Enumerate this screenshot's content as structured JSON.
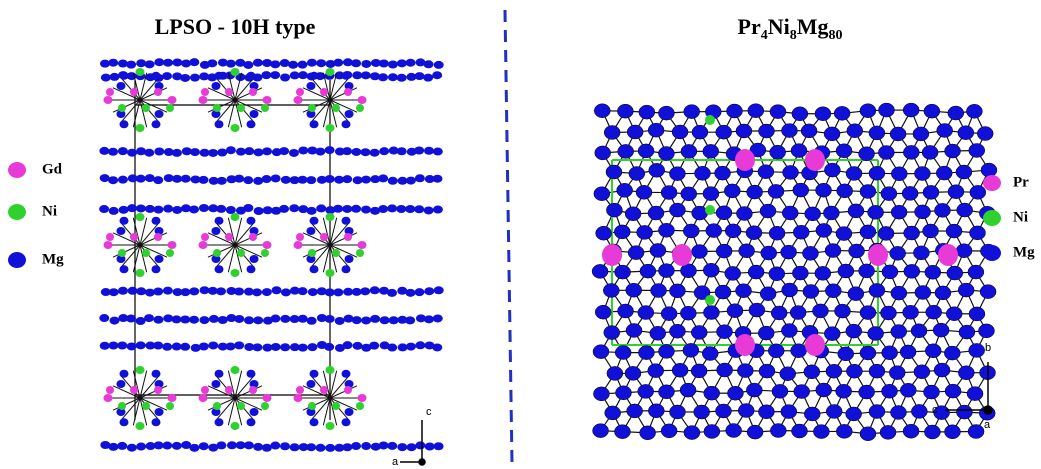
{
  "left": {
    "title": "LPSO - 10H type",
    "legend": [
      {
        "label": "Gd",
        "color": "#e83ad6"
      },
      {
        "label": "Ni",
        "color": "#2fd12f"
      },
      {
        "label": "Mg",
        "color": "#1010d8"
      }
    ],
    "axes": {
      "vertical": "c",
      "horizontal": "a"
    }
  },
  "right": {
    "title_parts": [
      "Pr",
      "4",
      "Ni",
      "8",
      "Mg",
      "80"
    ],
    "legend": [
      {
        "label": "Pr",
        "color": "#e83ad6"
      },
      {
        "label": "Ni",
        "color": "#2fd12f"
      },
      {
        "label": "Mg",
        "color": "#1010d8"
      }
    ],
    "axes": {
      "vertical": "b",
      "horizontal": "c",
      "depth": "a"
    }
  }
}
